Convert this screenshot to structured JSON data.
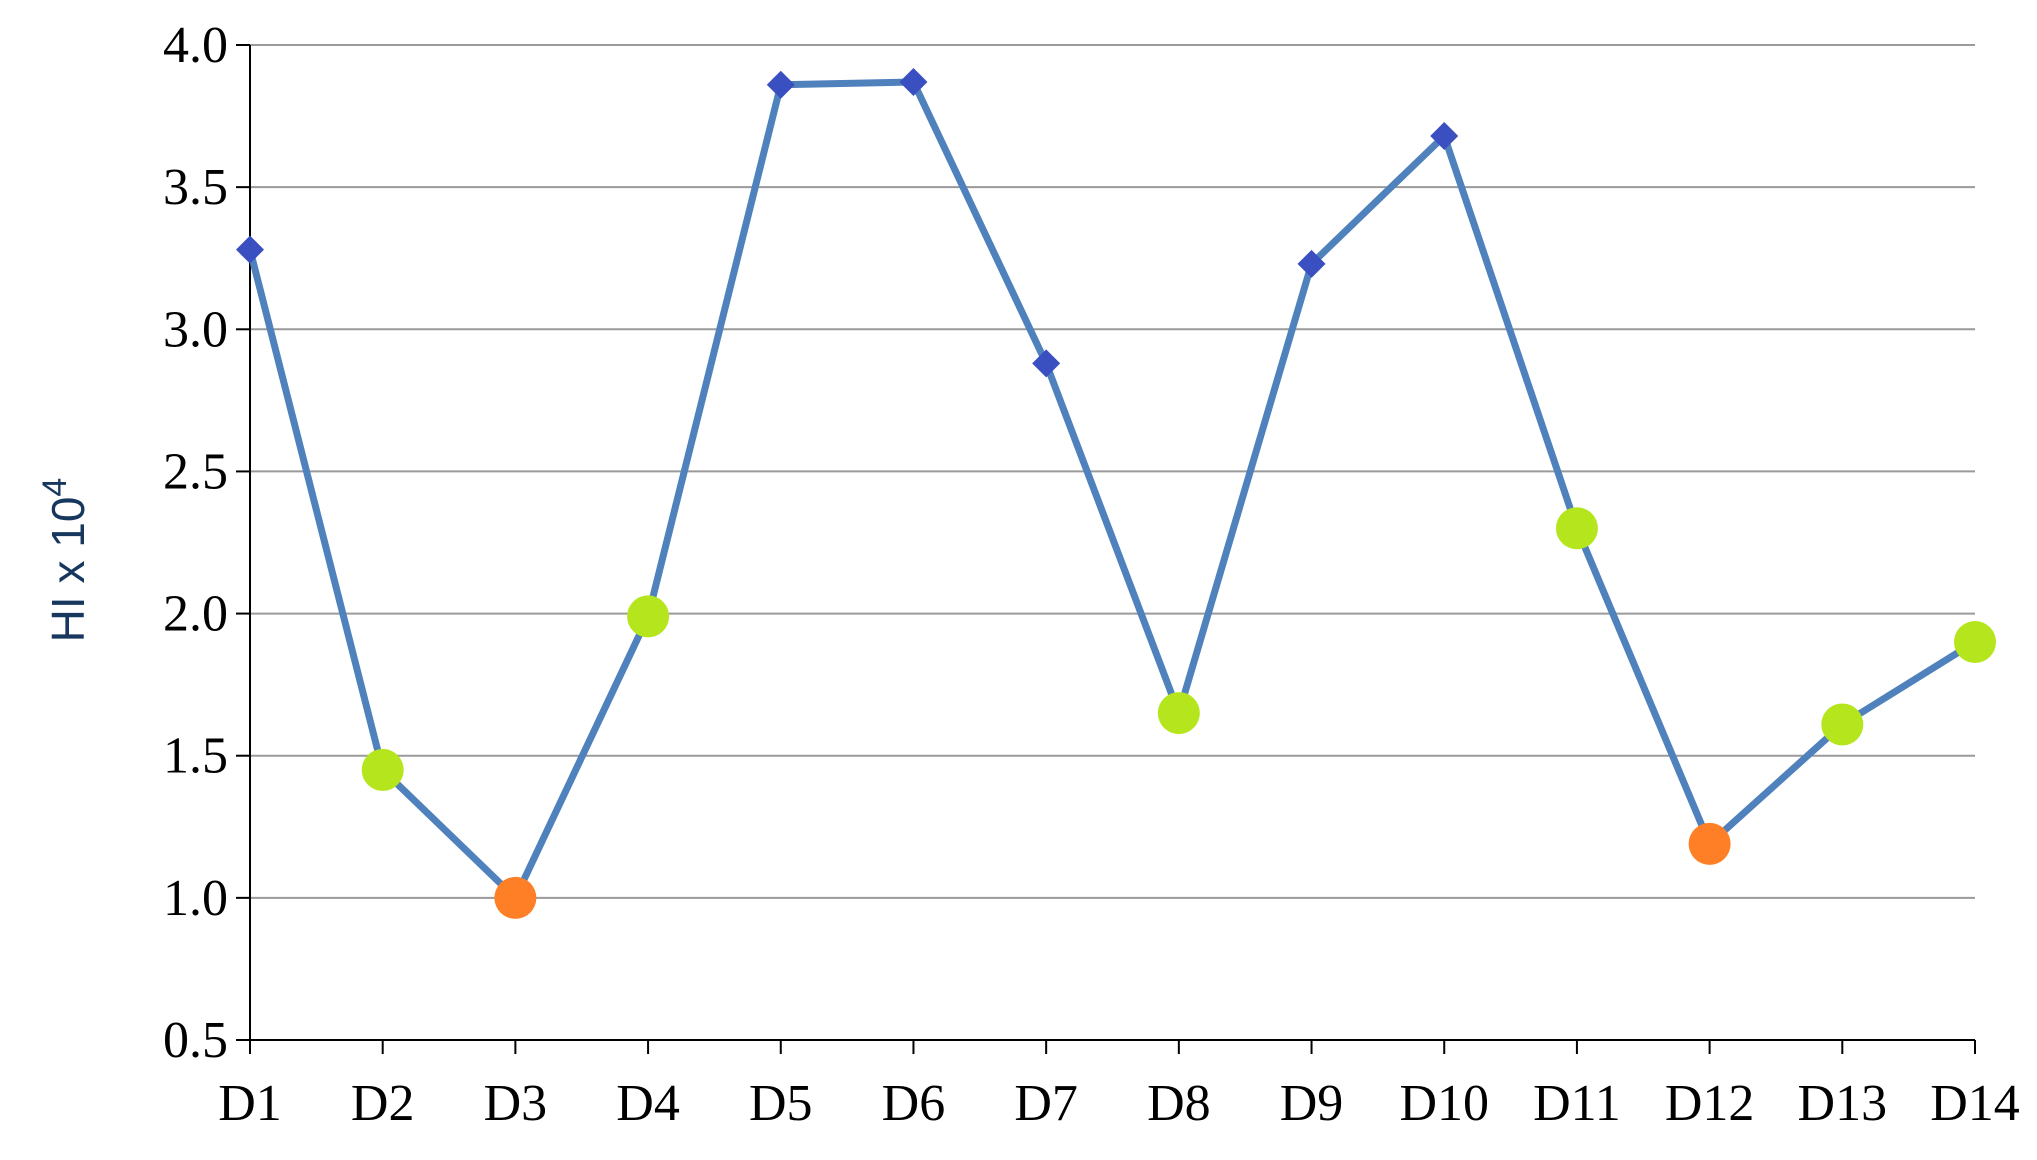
{
  "chart_data": {
    "type": "line",
    "categories": [
      "D1",
      "D2",
      "D3",
      "D4",
      "D5",
      "D6",
      "D7",
      "D8",
      "D9",
      "D10",
      "D11",
      "D12",
      "D13",
      "D14"
    ],
    "series": [
      {
        "values": [
          3.28,
          1.45,
          1.0,
          1.99,
          3.86,
          3.87,
          2.88,
          1.65,
          3.23,
          3.68,
          2.3,
          1.19,
          1.61,
          1.9
        ],
        "markers": [
          "diamond",
          "circle-green",
          "circle-orange",
          "circle-green",
          "diamond",
          "diamond",
          "diamond",
          "circle-green",
          "diamond",
          "diamond",
          "circle-green",
          "circle-orange",
          "circle-green",
          "circle-green"
        ]
      }
    ],
    "ylabel": "HI x 10",
    "ylabel_superscript": "4",
    "yticks": [
      "0.5",
      "1.0",
      "1.5",
      "2.0",
      "2.5",
      "3.0",
      "3.5",
      "4.0"
    ],
    "ylim": [
      0.5,
      4.0
    ],
    "grid": true,
    "colors": {
      "line": "#4f81bd",
      "diamond": "#3a4fc0",
      "circle-green": "#b5e61d",
      "circle-orange": "#ff7f27",
      "grid": "#9a9a9a",
      "ylabel": "#17375e"
    }
  }
}
